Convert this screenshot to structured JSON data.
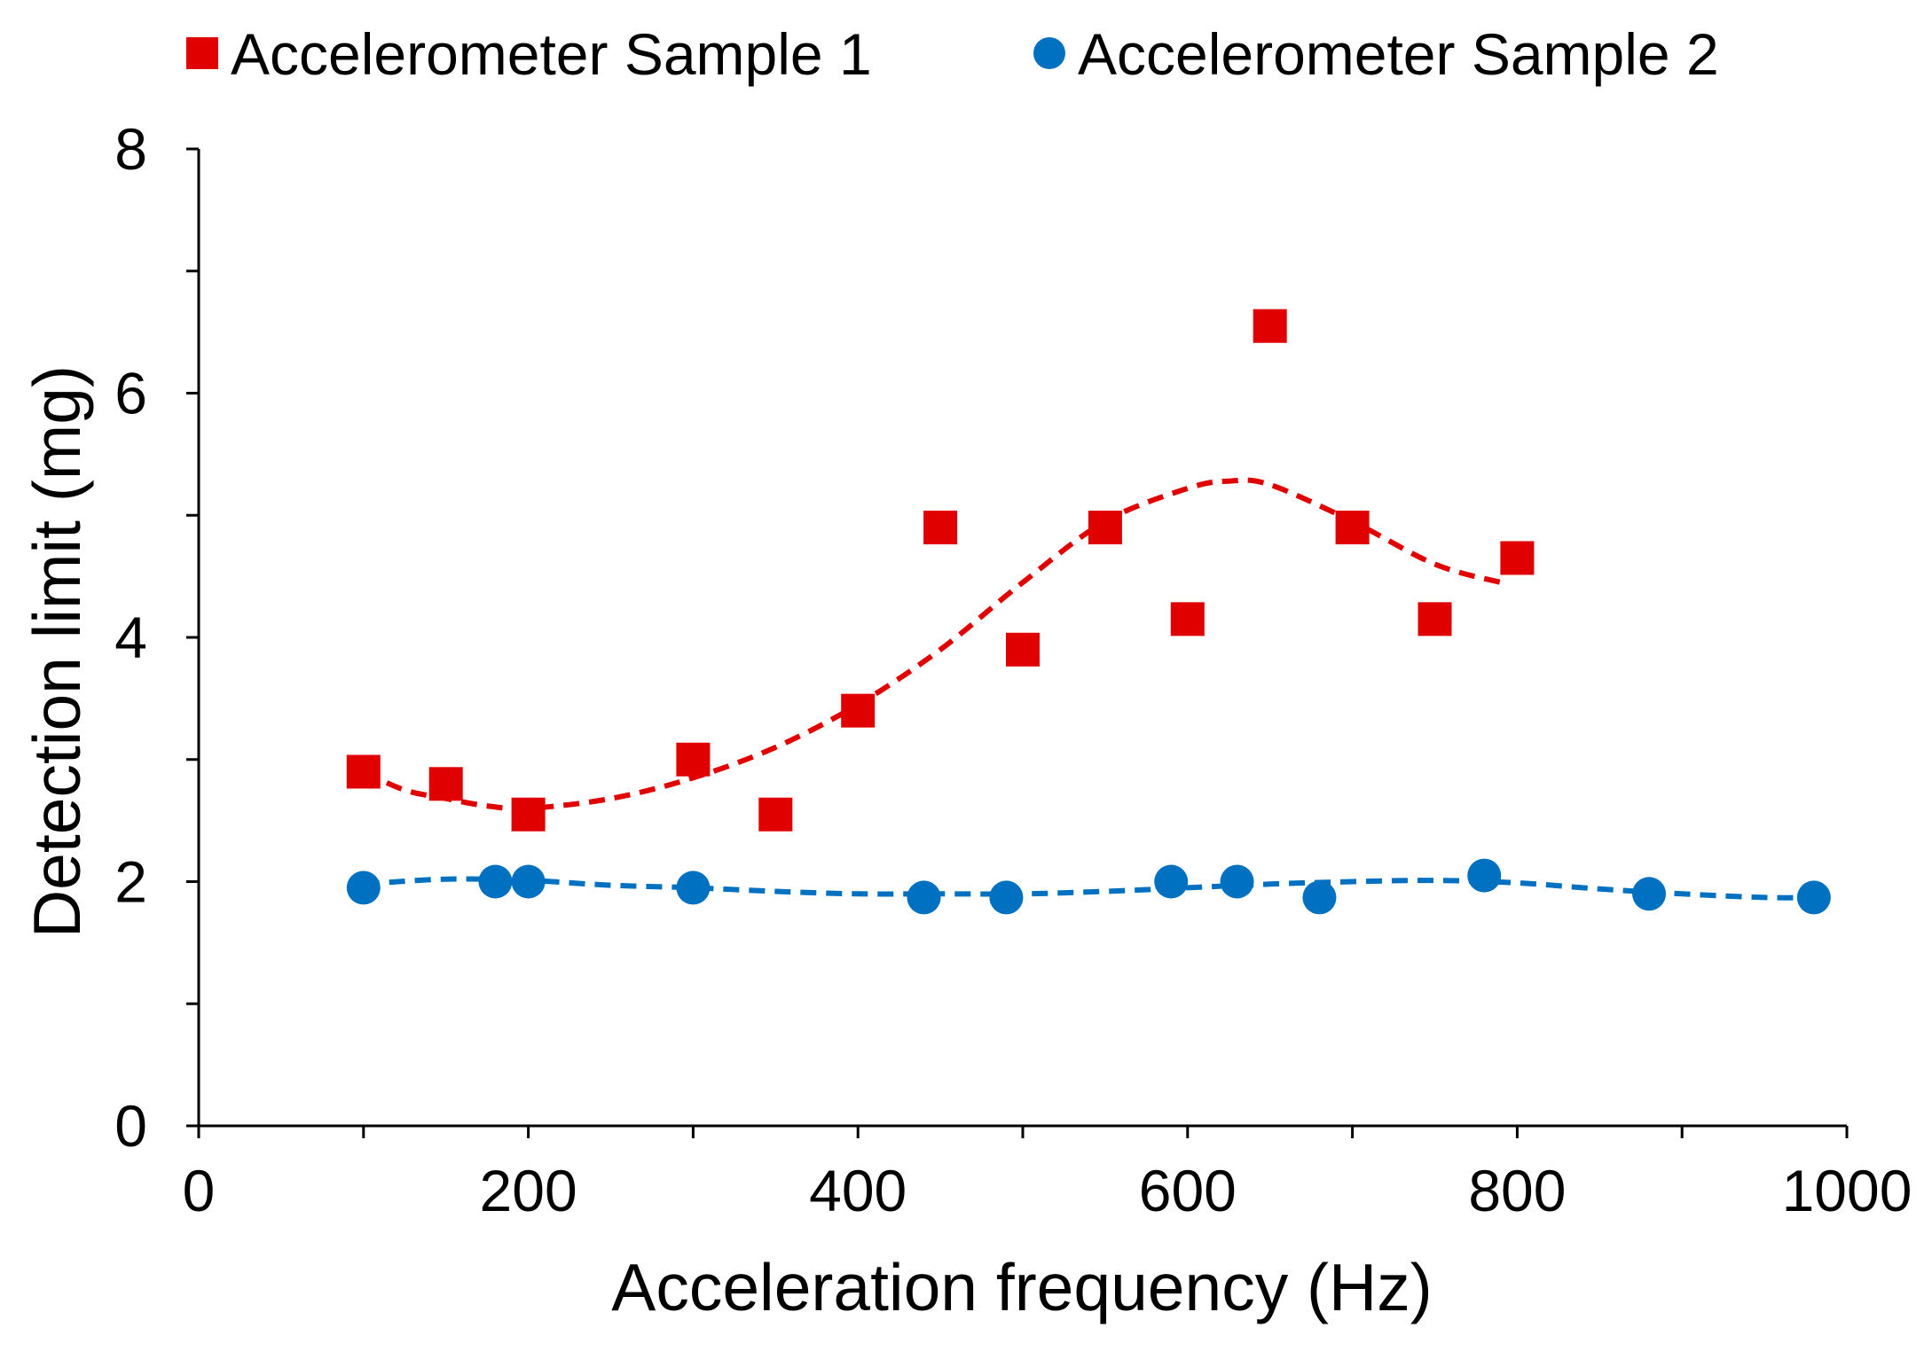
{
  "chart_data": {
    "type": "scatter",
    "title": "",
    "xlabel": "Acceleration frequency (Hz)",
    "ylabel": "Detection limit (mg)",
    "xlim": [
      0,
      1000
    ],
    "ylim": [
      0,
      8
    ],
    "x_ticks": [
      0,
      200,
      400,
      600,
      800,
      1000
    ],
    "x_tick_labels": [
      "0",
      "200",
      "400",
      "600",
      "800",
      "1000"
    ],
    "x_minor_ticks": [
      100,
      300,
      500,
      700,
      900
    ],
    "y_ticks": [
      0,
      2,
      4,
      6,
      8
    ],
    "y_tick_labels": [
      "0",
      "2",
      "4",
      "6",
      "8"
    ],
    "y_minor_ticks": [
      1,
      3,
      5,
      7
    ],
    "grid": false,
    "legend_position": "top",
    "series": [
      {
        "name": "Accelerometer Sample 1",
        "marker": "square",
        "color": "#E00000",
        "x": [
          100,
          150,
          200,
          300,
          350,
          400,
          450,
          500,
          550,
          600,
          650,
          700,
          750,
          800
        ],
        "y": [
          2.9,
          2.8,
          2.55,
          3.0,
          2.55,
          3.4,
          4.9,
          3.9,
          4.9,
          4.15,
          6.55,
          4.9,
          4.15,
          4.65
        ],
        "trendline": {
          "style": "dashed",
          "x": [
            100,
            125,
            150,
            175,
            200,
            250,
            300,
            350,
            400,
            450,
            500,
            550,
            600,
            625,
            650,
            700,
            750,
            790
          ],
          "y": [
            2.9,
            2.75,
            2.68,
            2.62,
            2.6,
            2.68,
            2.85,
            3.1,
            3.45,
            3.9,
            4.45,
            4.95,
            5.22,
            5.28,
            5.25,
            4.95,
            4.6,
            4.45
          ]
        }
      },
      {
        "name": "Accelerometer Sample 2",
        "marker": "circle",
        "color": "#0070C0",
        "x": [
          100,
          180,
          200,
          300,
          440,
          490,
          590,
          630,
          680,
          780,
          880,
          980
        ],
        "y": [
          1.95,
          2.0,
          2.0,
          1.95,
          1.87,
          1.87,
          2.0,
          2.0,
          1.87,
          2.05,
          1.9,
          1.87
        ],
        "trendline": {
          "style": "dashed",
          "x": [
            100,
            150,
            200,
            250,
            300,
            350,
            400,
            450,
            500,
            550,
            600,
            650,
            700,
            750,
            800,
            850,
            900,
            950,
            980
          ],
          "y": [
            1.98,
            2.02,
            2.01,
            1.97,
            1.95,
            1.92,
            1.9,
            1.9,
            1.9,
            1.92,
            1.95,
            1.98,
            2.0,
            2.01,
            1.99,
            1.94,
            1.9,
            1.87,
            1.87
          ]
        }
      }
    ]
  }
}
